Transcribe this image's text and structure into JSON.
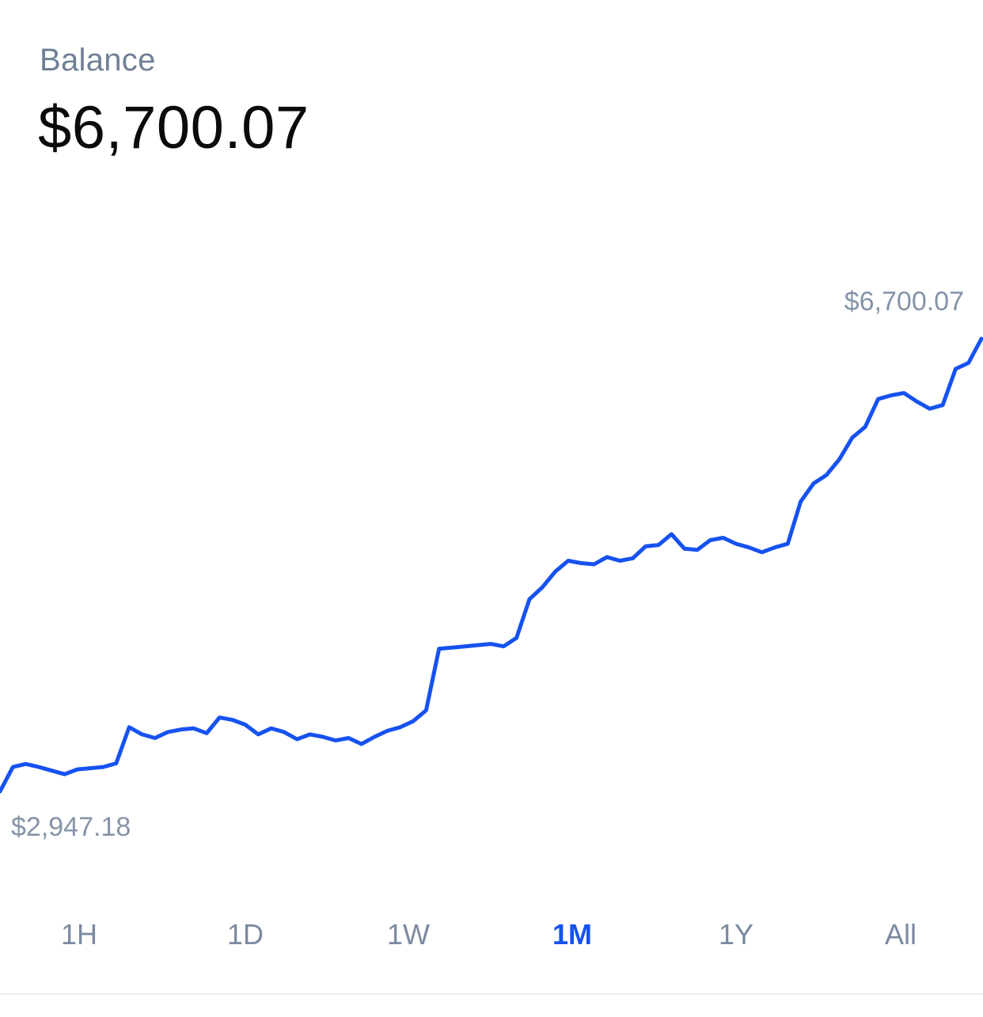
{
  "header": {
    "label": "Balance",
    "value": "$6,700.07"
  },
  "chart_data": {
    "type": "line",
    "max_label": "$6,700.07",
    "min_label": "$2,947.18",
    "line_color": "#1652f0",
    "ylim": [
      2947.18,
      6700.07
    ],
    "series": [
      {
        "values": [
          2947.18,
          3150,
          3175,
          3150,
          3120,
          3090,
          3130,
          3140,
          3150,
          3180,
          3480,
          3420,
          3390,
          3440,
          3460,
          3470,
          3430,
          3560,
          3540,
          3500,
          3420,
          3470,
          3440,
          3380,
          3420,
          3400,
          3370,
          3390,
          3340,
          3400,
          3450,
          3480,
          3530,
          3620,
          4130,
          4140,
          4150,
          4160,
          4170,
          4150,
          4220,
          4540,
          4640,
          4770,
          4860,
          4840,
          4830,
          4890,
          4860,
          4880,
          4980,
          4990,
          5080,
          4960,
          4950,
          5030,
          5050,
          5000,
          4970,
          4930,
          4970,
          5000,
          5350,
          5500,
          5570,
          5700,
          5880,
          5970,
          6200,
          6230,
          6250,
          6180,
          6120,
          6150,
          6450,
          6500,
          6700.07
        ]
      }
    ],
    "x_range_note": "1M"
  },
  "ranges": {
    "tabs": [
      {
        "label": "1H",
        "active": false
      },
      {
        "label": "1D",
        "active": false
      },
      {
        "label": "1W",
        "active": false
      },
      {
        "label": "1M",
        "active": true
      },
      {
        "label": "1Y",
        "active": false
      },
      {
        "label": "All",
        "active": false
      }
    ]
  }
}
